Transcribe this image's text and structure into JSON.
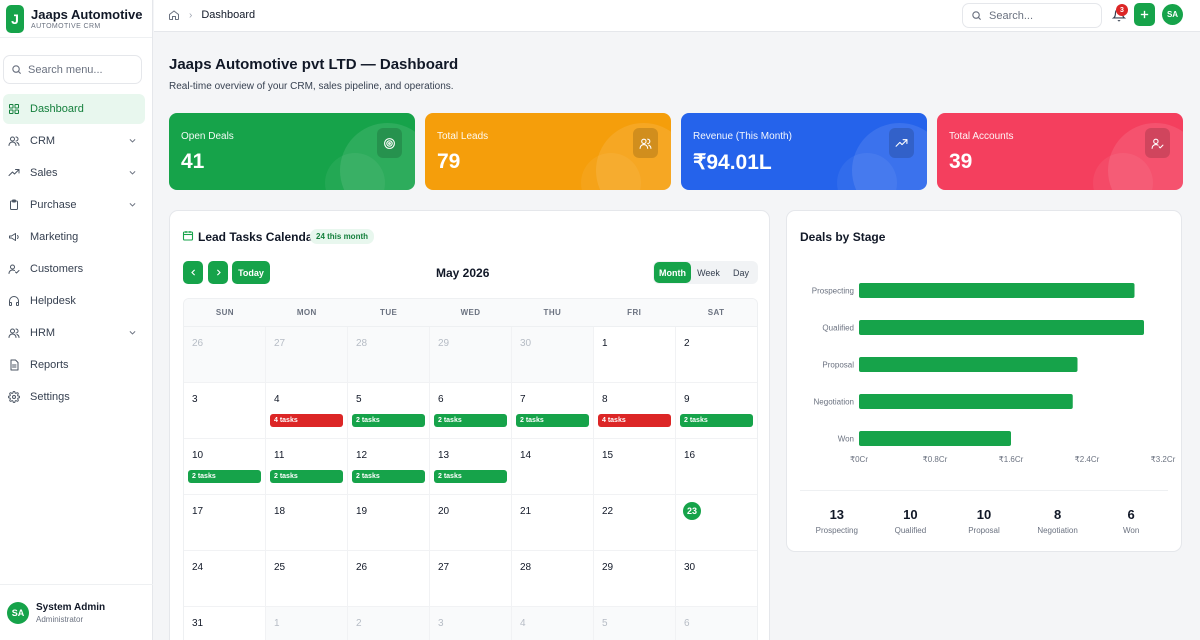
{
  "brand": {
    "initial": "J",
    "name": "Jaaps Automotive ...",
    "subtitle": "AUTOMOTIVE CRM"
  },
  "sidebar": {
    "search_placeholder": "Search menu...",
    "items": [
      {
        "label": "Dashboard",
        "icon": "dashboard-icon",
        "active": true,
        "expandable": false
      },
      {
        "label": "CRM",
        "icon": "users-icon",
        "active": false,
        "expandable": true
      },
      {
        "label": "Sales",
        "icon": "trending-icon",
        "active": false,
        "expandable": true
      },
      {
        "label": "Purchase",
        "icon": "clipboard-icon",
        "active": false,
        "expandable": true
      },
      {
        "label": "Marketing",
        "icon": "megaphone-icon",
        "active": false,
        "expandable": false
      },
      {
        "label": "Customers",
        "icon": "user-check-icon",
        "active": false,
        "expandable": false
      },
      {
        "label": "Helpdesk",
        "icon": "headphones-icon",
        "active": false,
        "expandable": false
      },
      {
        "label": "HRM",
        "icon": "users-icon",
        "active": false,
        "expandable": true
      },
      {
        "label": "Reports",
        "icon": "file-text-icon",
        "active": false,
        "expandable": false
      },
      {
        "label": "Settings",
        "icon": "gear-icon",
        "active": false,
        "expandable": false
      }
    ],
    "user": {
      "initials": "SA",
      "name": "System Admin",
      "role": "Administrator"
    }
  },
  "topbar": {
    "breadcrumb": "Dashboard",
    "search_placeholder": "Search...",
    "notification_count": "3",
    "avatar_initials": "SA"
  },
  "page": {
    "title": "Jaaps Automotive pvt LTD — Dashboard",
    "subtitle": "Real-time overview of your CRM, sales pipeline, and operations."
  },
  "cards": [
    {
      "label": "Open Deals",
      "value": "41",
      "color": "#16a34a",
      "icon": "target-icon"
    },
    {
      "label": "Total Leads",
      "value": "79",
      "color": "#f59e0b",
      "icon": "users-icon"
    },
    {
      "label": "Revenue (This Month)",
      "value": "₹94.01L",
      "color": "#2563eb",
      "icon": "trending-up-icon"
    },
    {
      "label": "Total Accounts",
      "value": "39",
      "color": "#f43f5e",
      "icon": "user-check-icon"
    }
  ],
  "calendar": {
    "title": "Lead Tasks Calendar",
    "badge": "24 this month",
    "today_label": "Today",
    "month_label": "May 2026",
    "views": [
      "Month",
      "Week",
      "Day"
    ],
    "active_view": "Month",
    "weekdays": [
      "SUN",
      "MON",
      "TUE",
      "WED",
      "THU",
      "FRI",
      "SAT"
    ],
    "weeks": [
      [
        {
          "d": "26",
          "muted": true
        },
        {
          "d": "27",
          "muted": true
        },
        {
          "d": "28",
          "muted": true
        },
        {
          "d": "29",
          "muted": true
        },
        {
          "d": "30",
          "muted": true
        },
        {
          "d": "1"
        },
        {
          "d": "2"
        }
      ],
      [
        {
          "d": "3"
        },
        {
          "d": "4",
          "task": "4 tasks",
          "status": "red"
        },
        {
          "d": "5",
          "task": "2 tasks",
          "status": "green"
        },
        {
          "d": "6",
          "task": "2 tasks",
          "status": "green"
        },
        {
          "d": "7",
          "task": "2 tasks",
          "status": "green"
        },
        {
          "d": "8",
          "task": "4 tasks",
          "status": "red"
        },
        {
          "d": "9",
          "task": "2 tasks",
          "status": "green"
        }
      ],
      [
        {
          "d": "10",
          "task": "2 tasks",
          "status": "green"
        },
        {
          "d": "11",
          "task": "2 tasks",
          "status": "green"
        },
        {
          "d": "12",
          "task": "2 tasks",
          "status": "green"
        },
        {
          "d": "13",
          "task": "2 tasks",
          "status": "green"
        },
        {
          "d": "14"
        },
        {
          "d": "15"
        },
        {
          "d": "16"
        }
      ],
      [
        {
          "d": "17"
        },
        {
          "d": "18"
        },
        {
          "d": "19"
        },
        {
          "d": "20"
        },
        {
          "d": "21"
        },
        {
          "d": "22"
        },
        {
          "d": "23",
          "today": true
        }
      ],
      [
        {
          "d": "24"
        },
        {
          "d": "25"
        },
        {
          "d": "26"
        },
        {
          "d": "27"
        },
        {
          "d": "28"
        },
        {
          "d": "29"
        },
        {
          "d": "30"
        }
      ],
      [
        {
          "d": "31"
        },
        {
          "d": "1",
          "muted": true
        },
        {
          "d": "2",
          "muted": true
        },
        {
          "d": "3",
          "muted": true
        },
        {
          "d": "4",
          "muted": true
        },
        {
          "d": "5",
          "muted": true
        },
        {
          "d": "6",
          "muted": true
        }
      ]
    ]
  },
  "deals_panel": {
    "title": "Deals by Stage",
    "stats": [
      {
        "value": "13",
        "label": "Prospecting"
      },
      {
        "value": "10",
        "label": "Qualified"
      },
      {
        "value": "10",
        "label": "Proposal"
      },
      {
        "value": "8",
        "label": "Negotiation"
      },
      {
        "value": "6",
        "label": "Won"
      }
    ]
  },
  "chart_data": {
    "type": "bar",
    "orientation": "horizontal",
    "title": "Deals by Stage",
    "categories": [
      "Prospecting",
      "Qualified",
      "Proposal",
      "Negotiation",
      "Won"
    ],
    "values": [
      2.9,
      3.0,
      2.3,
      2.25,
      1.6
    ],
    "x_ticks": [
      "₹0Cr",
      "₹0.8Cr",
      "₹1.6Cr",
      "₹2.4Cr",
      "₹3.2Cr"
    ],
    "xlim": [
      0,
      3.2
    ],
    "color": "#16a34a",
    "grid": false,
    "legend": "none"
  }
}
